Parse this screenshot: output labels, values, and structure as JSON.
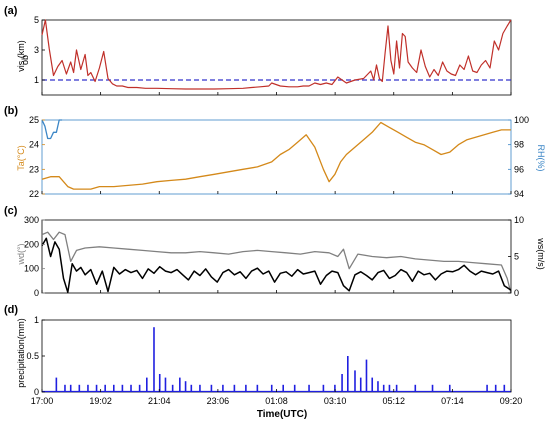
{
  "chart_data": [
    {
      "panel": "(a)",
      "type": "line",
      "ylabel": "vis_ob (km)",
      "ylim": [
        0,
        5
      ],
      "yticks": [
        1,
        3,
        5
      ],
      "threshold_line": {
        "value": 1,
        "style": "dashed",
        "color": "#3333cc"
      },
      "series": [
        {
          "color": "#c0302a",
          "x": [
            17.0,
            17.12,
            17.25,
            17.4,
            17.55,
            17.7,
            17.85,
            18.0,
            18.1,
            18.2,
            18.35,
            18.5,
            18.6,
            18.7,
            18.85,
            19.0,
            19.15,
            19.3,
            19.45,
            19.6,
            19.8,
            20.0,
            20.3,
            20.6,
            21.0,
            21.5,
            22.0,
            22.5,
            23.0,
            23.5,
            24.0,
            24.3,
            24.6,
            24.9,
            25.0,
            25.3,
            25.6,
            25.9,
            26.1,
            26.3,
            26.5,
            26.7,
            26.9,
            27.1,
            27.3,
            27.6,
            27.9,
            28.2,
            28.45,
            28.55,
            28.65,
            28.75,
            28.85,
            28.95,
            29.05,
            29.15,
            29.25,
            29.35,
            29.45,
            29.55,
            29.65,
            29.75,
            29.9,
            30.05,
            30.2,
            30.35,
            30.5,
            30.65,
            30.8,
            30.95,
            31.1,
            31.25,
            31.4,
            31.55,
            31.7,
            31.85,
            32.0,
            32.15,
            32.3,
            32.45,
            32.6,
            32.75,
            32.9,
            33.05,
            33.2,
            33.33
          ],
          "y": [
            4.0,
            5.0,
            3.1,
            1.3,
            1.9,
            2.3,
            1.4,
            2.2,
            1.5,
            3.0,
            1.7,
            2.7,
            1.3,
            1.5,
            0.9,
            1.8,
            2.9,
            1.1,
            0.75,
            0.6,
            0.6,
            0.5,
            0.5,
            0.45,
            0.45,
            0.42,
            0.4,
            0.4,
            0.4,
            0.42,
            0.45,
            0.5,
            0.55,
            0.6,
            0.8,
            0.6,
            0.55,
            0.55,
            0.6,
            0.6,
            0.8,
            0.7,
            0.8,
            0.7,
            1.2,
            0.8,
            1.0,
            1.1,
            1.6,
            1.0,
            2.0,
            1.1,
            0.9,
            2.8,
            4.6,
            2.3,
            1.4,
            3.6,
            1.8,
            4.1,
            3.9,
            2.2,
            1.8,
            1.5,
            3.0,
            1.9,
            1.2,
            1.7,
            1.3,
            2.2,
            1.6,
            1.4,
            1.3,
            2.0,
            1.7,
            2.6,
            1.6,
            1.5,
            2.0,
            2.3,
            1.8,
            3.6,
            3.0,
            4.1,
            4.6,
            5.0
          ]
        }
      ]
    },
    {
      "panel": "(b)",
      "type": "line",
      "ylabel_left": "Ta(°C)",
      "ylabel_right": "RH(%)",
      "ylim_left": [
        22,
        25
      ],
      "yticks_left": [
        22,
        23,
        24,
        25
      ],
      "ylim_right": [
        94,
        100
      ],
      "yticks_right": [
        94,
        96,
        98,
        100
      ],
      "series": [
        {
          "axis": "left",
          "color": "#d4891a",
          "x": [
            17.0,
            17.3,
            17.6,
            17.9,
            18.1,
            18.4,
            18.7,
            19.0,
            19.5,
            20.0,
            20.5,
            21.0,
            21.5,
            22.0,
            22.5,
            23.0,
            23.5,
            24.0,
            24.5,
            25.0,
            25.3,
            25.6,
            25.9,
            26.2,
            26.5,
            26.8,
            27.0,
            27.2,
            27.4,
            27.6,
            27.9,
            28.2,
            28.5,
            28.8,
            29.1,
            29.4,
            29.7,
            30.0,
            30.3,
            30.6,
            30.9,
            31.2,
            31.5,
            31.8,
            32.1,
            32.4,
            32.7,
            33.0,
            33.33
          ],
          "y": [
            22.6,
            22.7,
            22.7,
            22.3,
            22.2,
            22.2,
            22.2,
            22.3,
            22.3,
            22.35,
            22.4,
            22.5,
            22.55,
            22.6,
            22.7,
            22.8,
            22.9,
            23.0,
            23.1,
            23.3,
            23.6,
            23.8,
            24.1,
            24.4,
            23.9,
            23.0,
            22.5,
            22.8,
            23.3,
            23.6,
            23.9,
            24.2,
            24.5,
            24.9,
            24.7,
            24.5,
            24.3,
            24.1,
            24.0,
            23.8,
            23.6,
            23.7,
            24.0,
            24.2,
            24.3,
            24.4,
            24.5,
            24.6,
            24.6
          ]
        },
        {
          "axis": "right",
          "color": "#3b86c6",
          "x": [
            17.0,
            17.1,
            17.2,
            17.3,
            17.4,
            17.5,
            17.6,
            17.7
          ],
          "y": [
            100,
            99.5,
            98.5,
            98.5,
            99.0,
            99.0,
            100,
            100
          ]
        }
      ]
    },
    {
      "panel": "(c)",
      "type": "line",
      "ylabel_left": "wd(°)",
      "ylabel_right": "ws(m/s)",
      "ylim_left": [
        0,
        300
      ],
      "yticks_left": [
        0,
        100,
        200,
        300
      ],
      "ylim_right": [
        0,
        10
      ],
      "yticks_right": [
        0,
        5,
        10
      ],
      "series": [
        {
          "axis": "left",
          "color": "#808080",
          "x": [
            17.0,
            17.2,
            17.4,
            17.6,
            17.8,
            18.0,
            18.2,
            18.5,
            19.0,
            19.5,
            20.0,
            20.5,
            21.0,
            21.5,
            22.0,
            22.5,
            23.0,
            23.5,
            24.0,
            24.5,
            25.0,
            25.5,
            26.0,
            26.5,
            27.0,
            27.3,
            27.5,
            27.7,
            28.0,
            28.5,
            29.0,
            29.5,
            30.0,
            30.5,
            31.0,
            31.5,
            32.0,
            32.5,
            33.0,
            33.2,
            33.33
          ],
          "y": [
            240,
            250,
            220,
            250,
            240,
            130,
            175,
            185,
            190,
            185,
            180,
            175,
            170,
            165,
            165,
            170,
            165,
            160,
            170,
            175,
            170,
            165,
            160,
            170,
            165,
            150,
            180,
            100,
            160,
            150,
            145,
            150,
            140,
            135,
            130,
            130,
            125,
            120,
            115,
            60,
            0
          ]
        },
        {
          "axis": "right",
          "color": "#000000",
          "x": [
            17.0,
            17.15,
            17.3,
            17.45,
            17.6,
            17.75,
            17.9,
            18.05,
            18.2,
            18.35,
            18.5,
            18.7,
            18.9,
            19.1,
            19.3,
            19.5,
            19.7,
            19.9,
            20.1,
            20.3,
            20.5,
            20.7,
            20.9,
            21.1,
            21.3,
            21.5,
            21.7,
            21.9,
            22.1,
            22.3,
            22.5,
            22.7,
            22.9,
            23.1,
            23.3,
            23.5,
            23.7,
            23.9,
            24.1,
            24.3,
            24.5,
            24.7,
            24.9,
            25.1,
            25.3,
            25.5,
            25.7,
            25.9,
            26.1,
            26.3,
            26.5,
            26.7,
            26.9,
            27.1,
            27.3,
            27.5,
            27.7,
            27.9,
            28.1,
            28.3,
            28.5,
            28.7,
            28.9,
            29.1,
            29.3,
            29.5,
            29.7,
            29.9,
            30.1,
            30.3,
            30.5,
            30.7,
            30.9,
            31.1,
            31.3,
            31.5,
            31.7,
            31.9,
            32.1,
            32.3,
            32.5,
            32.7,
            32.9,
            33.1,
            33.33
          ],
          "y": [
            6.5,
            7.5,
            5.0,
            7.0,
            6.0,
            2.0,
            0.1,
            4.0,
            3.0,
            3.5,
            2.5,
            3.2,
            1.2,
            3.0,
            0.2,
            3.5,
            2.6,
            3.2,
            2.8,
            3.1,
            2.0,
            3.3,
            2.7,
            3.6,
            3.0,
            2.8,
            3.2,
            2.5,
            1.8,
            3.0,
            2.4,
            3.3,
            2.2,
            1.5,
            2.8,
            3.2,
            2.5,
            2.9,
            2.0,
            3.0,
            3.4,
            2.6,
            3.0,
            1.5,
            2.7,
            2.9,
            2.3,
            3.2,
            2.6,
            2.8,
            3.0,
            1.2,
            2.4,
            3.0,
            2.8,
            1.0,
            0.3,
            2.5,
            2.9,
            2.4,
            1.8,
            2.8,
            3.1,
            2.0,
            2.4,
            3.2,
            2.8,
            1.6,
            3.0,
            2.5,
            2.7,
            1.8,
            2.6,
            3.0,
            2.9,
            3.2,
            3.8,
            3.0,
            2.5,
            3.0,
            2.8,
            2.6,
            3.0,
            1.0,
            0.4
          ]
        }
      ]
    },
    {
      "panel": "(d)",
      "type": "bar",
      "ylabel": "precipitation(mm)",
      "xlabel": "Time(UTC)",
      "ylim": [
        0,
        1
      ],
      "yticks": [
        0,
        0.5,
        1
      ],
      "color": "#1f1fe0",
      "x": [
        17.5,
        17.8,
        18.0,
        18.3,
        18.6,
        18.9,
        19.2,
        19.5,
        19.8,
        20.1,
        20.4,
        20.65,
        20.9,
        21.1,
        21.3,
        21.55,
        21.8,
        22.0,
        22.2,
        22.5,
        22.9,
        23.3,
        23.7,
        24.1,
        24.5,
        25.0,
        25.4,
        25.8,
        26.3,
        26.8,
        27.2,
        27.45,
        27.65,
        27.9,
        28.1,
        28.3,
        28.5,
        28.7,
        28.9,
        29.1,
        29.35,
        30.0,
        30.6,
        31.2,
        32.5,
        32.8,
        33.1
      ],
      "values": [
        0.2,
        0.1,
        0.1,
        0.1,
        0.1,
        0.1,
        0.1,
        0.1,
        0.1,
        0.1,
        0.1,
        0.2,
        0.9,
        0.25,
        0.2,
        0.1,
        0.2,
        0.15,
        0.1,
        0.1,
        0.1,
        0.1,
        0.1,
        0.1,
        0.1,
        0.1,
        0.1,
        0.1,
        0.1,
        0.1,
        0.1,
        0.25,
        0.5,
        0.3,
        0.2,
        0.45,
        0.2,
        0.15,
        0.1,
        0.1,
        0.1,
        0.1,
        0.1,
        0.1,
        0.1,
        0.1,
        0.1
      ]
    }
  ],
  "panel_labels": [
    "(a)",
    "(b)",
    "(c)",
    "(d)"
  ],
  "x_axis": {
    "label": "Time(UTC)",
    "tick_labels": [
      "17:00",
      "19:02",
      "21:04",
      "23:06",
      "01:08",
      "03:10",
      "05:12",
      "07:14",
      "09:20"
    ]
  },
  "axis_text": {
    "a_ylabel": "vis  (km)",
    "a_ylabel_sub": "ob",
    "b_ylabel_left": "Ta(°C)",
    "b_ylabel_right": "RH(%)",
    "c_ylabel_left": "wd(°)",
    "c_ylabel_right": "ws(m/s)",
    "d_ylabel": "precipitation(mm)",
    "a_ticks": [
      "1",
      "3",
      "5"
    ],
    "b_ticks_left": [
      "22",
      "23",
      "24",
      "25"
    ],
    "b_ticks_right": [
      "94",
      "96",
      "98",
      "100"
    ],
    "c_ticks_left": [
      "0",
      "100",
      "200",
      "300"
    ],
    "c_ticks_right": [
      "0",
      "5",
      "10"
    ],
    "d_ticks": [
      "0",
      "0.5",
      "1"
    ]
  },
  "colors": {
    "vis": "#c0302a",
    "threshold": "#3333cc",
    "ta": "#d4891a",
    "rh": "#3b86c6",
    "wd": "#808080",
    "ws": "#000000",
    "precip": "#1f1fe0"
  }
}
